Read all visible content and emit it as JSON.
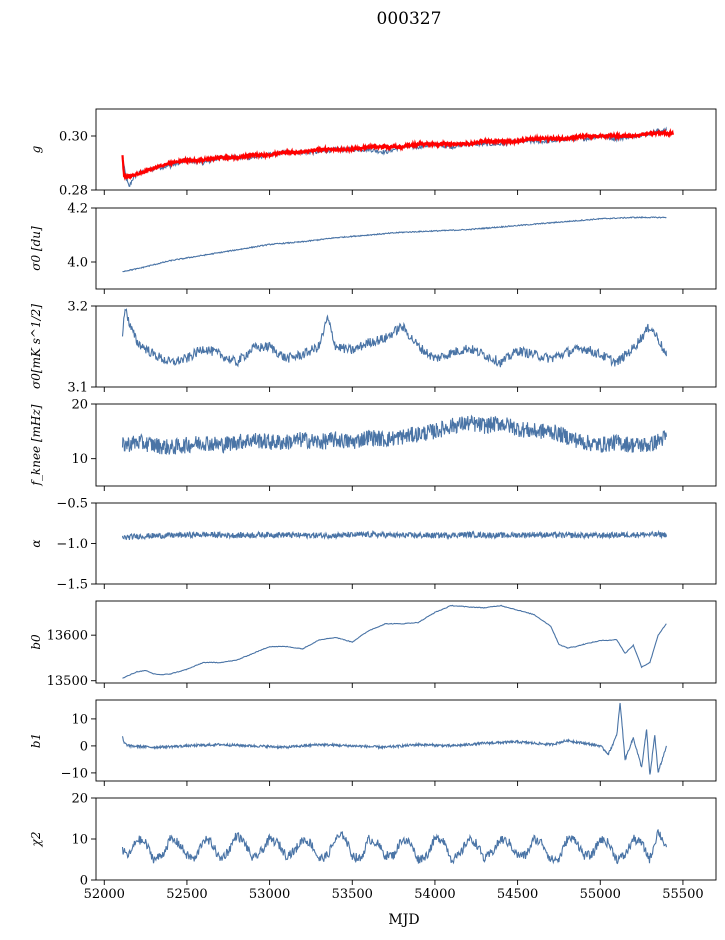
{
  "figure": {
    "title": "000327",
    "xlabel": "MJD",
    "series_color": "#4a74a6",
    "fit_color": "#ff0000"
  },
  "chart_data": [
    {
      "type": "line",
      "panel": "g",
      "ylabel": "g",
      "ylim": [
        0.28,
        0.31
      ],
      "yticks": [
        0.28,
        0.3
      ],
      "ytick_labels": [
        "0.28",
        "0.30"
      ],
      "xlim": [
        51950,
        55700
      ],
      "series": [
        {
          "name": "g",
          "x": [
            52110,
            52130,
            52150,
            52170,
            52200,
            52250,
            52300,
            52400,
            52500,
            52600,
            52700,
            52800,
            52900,
            53000,
            53100,
            53200,
            53300,
            53400,
            53500,
            53600,
            53700,
            53800,
            53900,
            54000,
            54100,
            54200,
            54300,
            54400,
            54500,
            54600,
            54700,
            54800,
            54900,
            55000,
            55100,
            55200,
            55300,
            55350,
            55400
          ],
          "y": [
            0.292,
            0.285,
            0.281,
            0.284,
            0.286,
            0.287,
            0.288,
            0.289,
            0.291,
            0.29,
            0.292,
            0.292,
            0.292,
            0.293,
            0.294,
            0.294,
            0.294,
            0.295,
            0.295,
            0.295,
            0.294,
            0.296,
            0.296,
            0.297,
            0.296,
            0.297,
            0.297,
            0.297,
            0.298,
            0.298,
            0.298,
            0.299,
            0.299,
            0.3,
            0.299,
            0.3,
            0.301,
            0.302,
            0.302
          ]
        },
        {
          "name": "g_fit",
          "x": [
            52110,
            52120,
            52150,
            52200,
            52300,
            52400,
            52500,
            52600,
            52700,
            52800,
            52900,
            53000,
            53100,
            53200,
            53300,
            53400,
            53500,
            53600,
            53700,
            53800,
            53900,
            54000,
            54100,
            54200,
            54300,
            54400,
            54500,
            54600,
            54700,
            54800,
            54900,
            55000,
            55100,
            55200,
            55300,
            55400,
            55440
          ],
          "y": [
            0.293,
            0.285,
            0.285,
            0.286,
            0.288,
            0.29,
            0.291,
            0.291,
            0.292,
            0.292,
            0.293,
            0.293,
            0.294,
            0.294,
            0.295,
            0.295,
            0.295,
            0.296,
            0.296,
            0.296,
            0.297,
            0.297,
            0.297,
            0.297,
            0.298,
            0.298,
            0.298,
            0.299,
            0.299,
            0.299,
            0.3,
            0.3,
            0.3,
            0.3,
            0.301,
            0.301,
            0.301
          ]
        }
      ]
    },
    {
      "type": "line",
      "panel": "sigma0_du",
      "ylabel": "σ0 [du]",
      "ylim": [
        3.9,
        4.2
      ],
      "yticks": [
        4.0,
        4.2
      ],
      "ytick_labels": [
        "4.0",
        "4.2"
      ],
      "xlim": [
        51950,
        55700
      ],
      "series": [
        {
          "name": "sigma0_du",
          "x": [
            52110,
            52200,
            52300,
            52400,
            52500,
            52600,
            52700,
            52800,
            52900,
            53000,
            53200,
            53400,
            53600,
            53800,
            54000,
            54200,
            54400,
            54600,
            54800,
            55000,
            55200,
            55400
          ],
          "y": [
            3.965,
            3.975,
            3.99,
            4.005,
            4.015,
            4.025,
            4.035,
            4.045,
            4.055,
            4.065,
            4.075,
            4.09,
            4.1,
            4.11,
            4.115,
            4.12,
            4.13,
            4.14,
            4.15,
            4.16,
            4.165,
            4.165
          ]
        }
      ]
    },
    {
      "type": "line",
      "panel": "sigma0_mK",
      "ylabel": "σ0[mK s^1/2]",
      "ylim": [
        3.1,
        3.2
      ],
      "yticks": [
        3.1,
        3.2
      ],
      "ytick_labels": [
        "3.1",
        "3.2"
      ],
      "xlim": [
        51950,
        55700
      ],
      "series": [
        {
          "name": "sigma0_mK",
          "x": [
            52110,
            52130,
            52150,
            52200,
            52300,
            52400,
            52500,
            52600,
            52700,
            52800,
            52900,
            53000,
            53100,
            53200,
            53300,
            53350,
            53400,
            53500,
            53600,
            53700,
            53800,
            53900,
            54000,
            54100,
            54200,
            54300,
            54400,
            54500,
            54600,
            54700,
            54800,
            54900,
            55000,
            55100,
            55200,
            55300,
            55350,
            55400
          ],
          "y": [
            3.167,
            3.2,
            3.178,
            3.155,
            3.14,
            3.13,
            3.135,
            3.148,
            3.14,
            3.13,
            3.148,
            3.15,
            3.135,
            3.14,
            3.15,
            3.185,
            3.15,
            3.145,
            3.155,
            3.16,
            3.175,
            3.15,
            3.135,
            3.142,
            3.148,
            3.14,
            3.13,
            3.145,
            3.14,
            3.135,
            3.143,
            3.148,
            3.14,
            3.13,
            3.148,
            3.175,
            3.16,
            3.138
          ]
        }
      ]
    },
    {
      "type": "line",
      "panel": "fknee",
      "ylabel": "f_knee [mHz]",
      "ylim": [
        5,
        20
      ],
      "yticks": [
        10,
        20
      ],
      "ytick_labels": [
        "10",
        "20"
      ],
      "xlim": [
        51950,
        55700
      ],
      "series": [
        {
          "name": "fknee",
          "x": [
            52110,
            52200,
            52300,
            52400,
            52500,
            52600,
            52700,
            52800,
            52900,
            53000,
            53100,
            53200,
            53300,
            53400,
            53500,
            53600,
            53700,
            53800,
            53900,
            54000,
            54100,
            54200,
            54300,
            54400,
            54500,
            54600,
            54700,
            54800,
            54900,
            55000,
            55100,
            55200,
            55300,
            55400
          ],
          "y": [
            12.5,
            13,
            12.5,
            12,
            12.5,
            13,
            12.5,
            13,
            13.5,
            13,
            13,
            13.5,
            13,
            13.5,
            13,
            14,
            13.5,
            14,
            14.5,
            15,
            16,
            16.5,
            16,
            16.5,
            15.5,
            15,
            15,
            14,
            13,
            12.5,
            13,
            12.5,
            12.5,
            14
          ]
        }
      ]
    },
    {
      "type": "line",
      "panel": "alpha",
      "ylabel": "α",
      "ylim": [
        -1.5,
        -0.5
      ],
      "yticks": [
        -1.5,
        -1.0,
        -0.5
      ],
      "ytick_labels": [
        "−1.5",
        "−1.0",
        "−0.5"
      ],
      "xlim": [
        51950,
        55700
      ],
      "series": [
        {
          "name": "alpha",
          "x": [
            52110,
            52200,
            52400,
            52600,
            52800,
            53000,
            53200,
            53400,
            53600,
            53800,
            54000,
            54200,
            54400,
            54600,
            54800,
            55000,
            55200,
            55400
          ],
          "y": [
            -0.93,
            -0.91,
            -0.9,
            -0.89,
            -0.9,
            -0.89,
            -0.9,
            -0.9,
            -0.89,
            -0.9,
            -0.9,
            -0.89,
            -0.9,
            -0.89,
            -0.9,
            -0.9,
            -0.89,
            -0.89
          ]
        }
      ]
    },
    {
      "type": "line",
      "panel": "b0",
      "ylabel": "b0",
      "ylim": [
        13495,
        13675
      ],
      "yticks": [
        13500,
        13600
      ],
      "ytick_labels": [
        "13500",
        "13600"
      ],
      "xlim": [
        51950,
        55700
      ],
      "series": [
        {
          "name": "b0",
          "x": [
            52110,
            52150,
            52200,
            52250,
            52300,
            52350,
            52400,
            52500,
            52600,
            52700,
            52800,
            52900,
            53000,
            53100,
            53200,
            53300,
            53400,
            53500,
            53600,
            53700,
            53800,
            53900,
            54000,
            54100,
            54200,
            54300,
            54400,
            54500,
            54600,
            54700,
            54750,
            54800,
            54850,
            54900,
            55000,
            55100,
            55150,
            55200,
            55250,
            55300,
            55350,
            55400
          ],
          "y": [
            13505,
            13512,
            13520,
            13522,
            13515,
            13513,
            13515,
            13525,
            13540,
            13540,
            13545,
            13560,
            13575,
            13575,
            13570,
            13590,
            13595,
            13585,
            13610,
            13625,
            13625,
            13628,
            13650,
            13665,
            13662,
            13660,
            13665,
            13655,
            13645,
            13620,
            13580,
            13572,
            13575,
            13580,
            13588,
            13590,
            13560,
            13578,
            13530,
            13540,
            13600,
            13625
          ]
        }
      ]
    },
    {
      "type": "line",
      "panel": "b1",
      "ylabel": "b1",
      "ylim": [
        -13,
        17
      ],
      "yticks": [
        -10,
        0,
        10
      ],
      "ytick_labels": [
        "−10",
        "0",
        "10"
      ],
      "xlim": [
        51950,
        55700
      ],
      "series": [
        {
          "name": "b1",
          "x": [
            52110,
            52120,
            52150,
            52300,
            52500,
            52700,
            52900,
            53100,
            53300,
            53500,
            53700,
            53900,
            54100,
            54300,
            54500,
            54700,
            54800,
            54900,
            55000,
            55050,
            55100,
            55120,
            55150,
            55200,
            55250,
            55280,
            55300,
            55330,
            55350,
            55400
          ],
          "y": [
            3.5,
            1,
            0,
            -0.5,
            0,
            0.5,
            0,
            -0.5,
            0.5,
            0,
            -0.5,
            0.5,
            0,
            1,
            1.5,
            0.5,
            2,
            1,
            0,
            -3,
            4,
            16,
            -5,
            3,
            -8,
            6,
            -11,
            4,
            -10,
            0
          ]
        }
      ]
    },
    {
      "type": "line",
      "panel": "chi2",
      "ylabel": "χ2",
      "ylim": [
        0,
        20
      ],
      "yticks": [
        0,
        10,
        20
      ],
      "ytick_labels": [
        "0",
        "10",
        "20"
      ],
      "xlim": [
        51950,
        55700
      ],
      "xticks": [
        52000,
        52500,
        53000,
        53500,
        54000,
        54500,
        55000,
        55500
      ],
      "xtick_labels": [
        "52000",
        "52500",
        "53000",
        "53500",
        "54000",
        "54500",
        "55000",
        "55500"
      ],
      "series": [
        {
          "name": "chi2",
          "x": [
            52110,
            52150,
            52200,
            52250,
            52300,
            52350,
            52400,
            52450,
            52500,
            52550,
            52600,
            52650,
            52700,
            52750,
            52800,
            52850,
            52900,
            52950,
            53000,
            53050,
            53100,
            53150,
            53200,
            53250,
            53300,
            53350,
            53400,
            53450,
            53500,
            53550,
            53600,
            53650,
            53700,
            53750,
            53800,
            53850,
            53900,
            53950,
            54000,
            54050,
            54100,
            54150,
            54200,
            54250,
            54300,
            54350,
            54400,
            54450,
            54500,
            54550,
            54600,
            54650,
            54700,
            54750,
            54800,
            54850,
            54900,
            54950,
            55000,
            55050,
            55100,
            55150,
            55200,
            55250,
            55300,
            55350,
            55400
          ],
          "y": [
            7,
            6,
            10,
            9,
            5,
            6,
            10,
            9,
            6,
            5,
            10,
            9,
            5,
            7,
            11,
            9,
            5,
            7,
            10,
            9,
            6,
            7,
            10,
            9,
            5,
            6,
            10,
            11,
            6,
            5,
            10,
            9,
            6,
            6,
            10,
            9,
            5,
            6,
            10,
            10,
            5,
            6,
            10,
            9,
            5,
            7,
            10,
            9,
            6,
            6,
            10,
            9,
            5,
            5,
            10,
            10,
            6,
            6,
            10,
            9,
            5,
            6,
            10,
            9,
            5,
            12,
            8
          ]
        }
      ]
    }
  ]
}
